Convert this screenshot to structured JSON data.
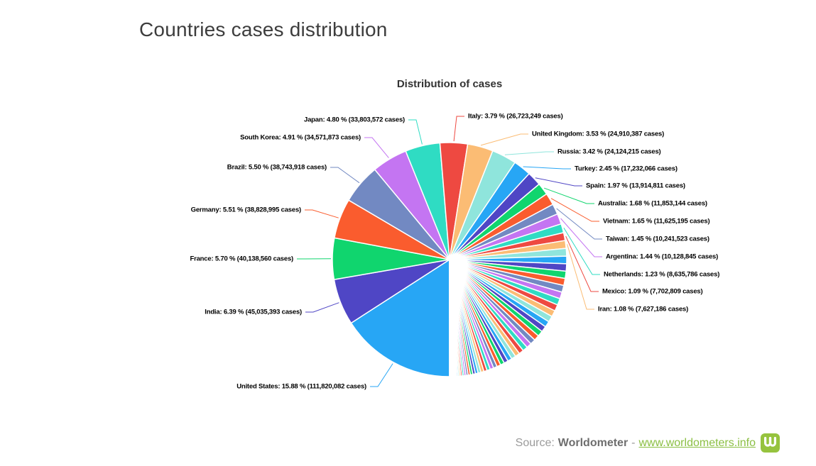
{
  "page": {
    "title": "Countries cases distribution"
  },
  "chart": {
    "title": "Distribution of cases"
  },
  "chart_data": {
    "type": "pie",
    "title": "Distribution of cases",
    "label_format": "{name}: {pct} % ({cases} cases)",
    "start_angle_deg": 180,
    "direction": "clockwise",
    "legend": "none",
    "palette": [
      "#27a6f5",
      "#4f46c5",
      "#10d56e",
      "#fa5c2e",
      "#7289c2",
      "#c475f2",
      "#2fdcc3",
      "#ee4941",
      "#fbbc74",
      "#8fe5dc"
    ],
    "slices": [
      {
        "name": "United States",
        "pct": 15.88,
        "pct_text": "15.88",
        "cases": "111,820,082"
      },
      {
        "name": "India",
        "pct": 6.39,
        "pct_text": "6.39",
        "cases": "45,035,393"
      },
      {
        "name": "France",
        "pct": 5.7,
        "pct_text": "5.70",
        "cases": "40,138,560"
      },
      {
        "name": "Germany",
        "pct": 5.51,
        "pct_text": "5.51",
        "cases": "38,828,995"
      },
      {
        "name": "Brazil",
        "pct": 5.5,
        "pct_text": "5.50",
        "cases": "38,743,918"
      },
      {
        "name": "South Korea",
        "pct": 4.91,
        "pct_text": "4.91",
        "cases": "34,571,873"
      },
      {
        "name": "Japan",
        "pct": 4.8,
        "pct_text": "4.80",
        "cases": "33,803,572"
      },
      {
        "name": "Italy",
        "pct": 3.79,
        "pct_text": "3.79",
        "cases": "26,723,249"
      },
      {
        "name": "United Kingdom",
        "pct": 3.53,
        "pct_text": "3.53",
        "cases": "24,910,387"
      },
      {
        "name": "Russia",
        "pct": 3.42,
        "pct_text": "3.42",
        "cases": "24,124,215"
      },
      {
        "name": "Turkey",
        "pct": 2.45,
        "pct_text": "2.45",
        "cases": "17,232,066"
      },
      {
        "name": "Spain",
        "pct": 1.97,
        "pct_text": "1.97",
        "cases": "13,914,811"
      },
      {
        "name": "Australia",
        "pct": 1.68,
        "pct_text": "1.68",
        "cases": "11,853,144"
      },
      {
        "name": "Vietnam",
        "pct": 1.65,
        "pct_text": "1.65",
        "cases": "11,625,195"
      },
      {
        "name": "Taiwan",
        "pct": 1.45,
        "pct_text": "1.45",
        "cases": "10,241,523"
      },
      {
        "name": "Argentina",
        "pct": 1.44,
        "pct_text": "1.44",
        "cases": "10,128,845"
      },
      {
        "name": "Netherlands",
        "pct": 1.23,
        "pct_text": "1.23",
        "cases": "8,635,786"
      },
      {
        "name": "Mexico",
        "pct": 1.09,
        "pct_text": "1.09",
        "cases": "7,702,809"
      },
      {
        "name": "Iran",
        "pct": 1.08,
        "pct_text": "1.08",
        "cases": "7,627,186"
      }
    ],
    "others_unlabeled": {
      "total_pct": 26.53,
      "approx_pcts": [
        1.05,
        1.028,
        1.006,
        0.985,
        0.963,
        0.941,
        0.919,
        0.897,
        0.876,
        0.854,
        0.832,
        0.81,
        0.788,
        0.767,
        0.745,
        0.723,
        0.701,
        0.679,
        0.658,
        0.636,
        0.614,
        0.592,
        0.57,
        0.549,
        0.527,
        0.505,
        0.483,
        0.461,
        0.44,
        0.418,
        0.396,
        0.374,
        0.352,
        0.331,
        0.309,
        0.287,
        0.265,
        0.243,
        0.222,
        0.2,
        0.18,
        0.16,
        0.14,
        0.12,
        0.1,
        0.09,
        0.08,
        0.07,
        0.06,
        0.05,
        0.045,
        0.04,
        0.035,
        0.03,
        0.025,
        0.02,
        0.018,
        0.015,
        0.012,
        0.01
      ]
    }
  },
  "footer": {
    "source_label": "Source:",
    "source_name": "Worldometer",
    "separator": "-",
    "link_text": "www.worldometers.info",
    "logo_color": "#96c33e",
    "link_color": "#8bbf43"
  }
}
